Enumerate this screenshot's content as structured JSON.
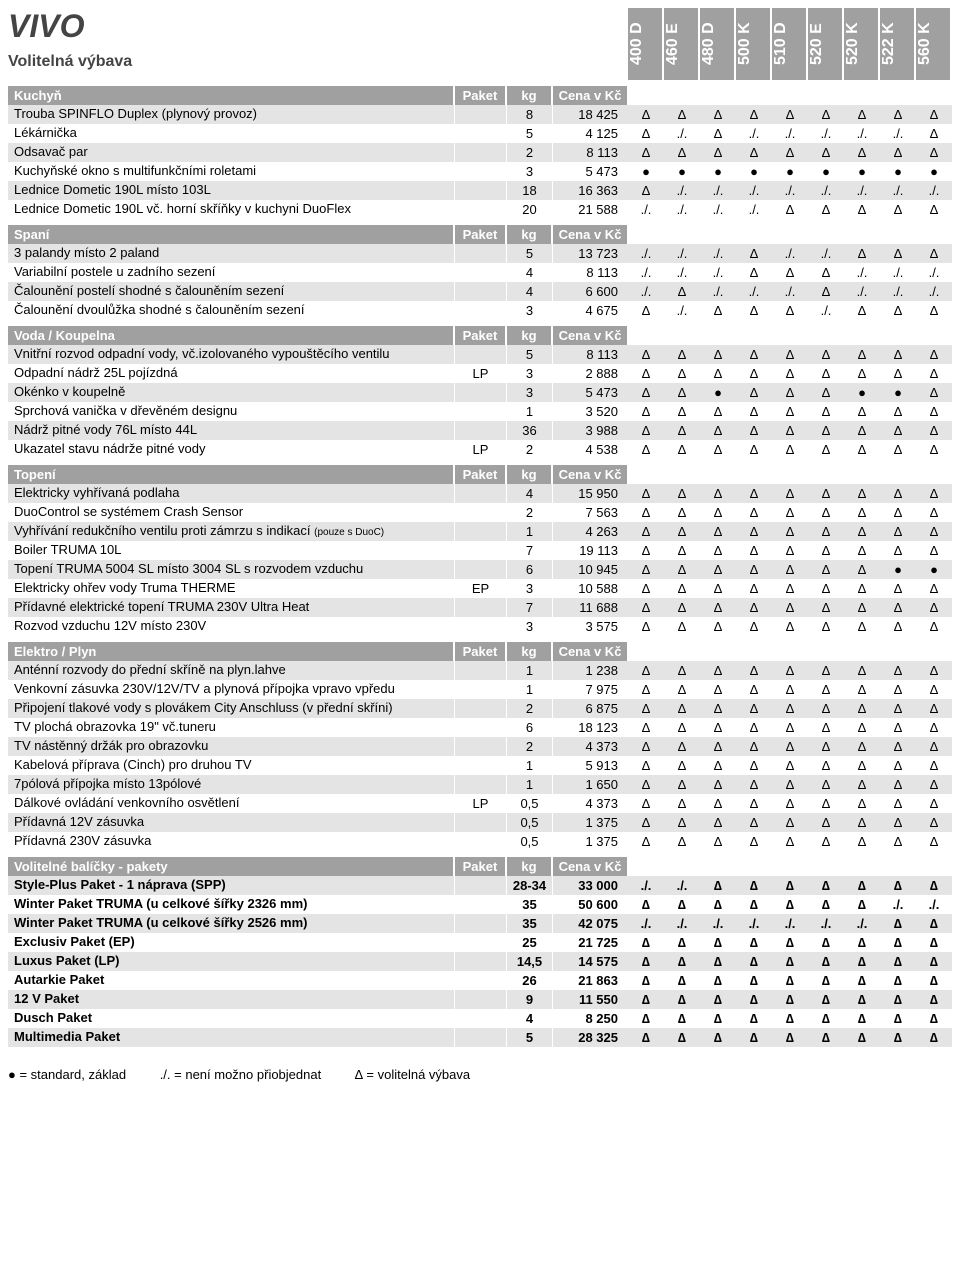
{
  "title": "VIVO",
  "subtitle": "Volitelná výbava",
  "models": [
    "400 D",
    "460 E",
    "480 D",
    "500 K",
    "510 D",
    "520 E",
    "520 K",
    "522 K",
    "560 K"
  ],
  "headLabels": {
    "paket": "Paket",
    "kg": "kg",
    "price": "Cena v Kč"
  },
  "legend": {
    "std": "● = standard, základ",
    "na": "./. = není možno přiobjednat",
    "opt": "∆ =  volitelná výbava"
  },
  "sections": [
    {
      "name": "Kuchyň",
      "rows": [
        {
          "name": "Trouba SPINFLO Duplex (plynový provoz)",
          "paket": "",
          "kg": "8",
          "price": "18 425",
          "m": [
            "∆",
            "∆",
            "∆",
            "∆",
            "∆",
            "∆",
            "∆",
            "∆",
            "∆"
          ]
        },
        {
          "name": "Lékárnička",
          "paket": "",
          "kg": "5",
          "price": "4 125",
          "m": [
            "∆",
            "./.",
            "∆",
            "./.",
            "./.",
            "./.",
            "./.",
            "./.",
            "∆"
          ]
        },
        {
          "name": "Odsavač par",
          "paket": "",
          "kg": "2",
          "price": "8 113",
          "m": [
            "∆",
            "∆",
            "∆",
            "∆",
            "∆",
            "∆",
            "∆",
            "∆",
            "∆"
          ]
        },
        {
          "name": "Kuchyňské okno s multifunkčními roletami",
          "paket": "",
          "kg": "3",
          "price": "5 473",
          "m": [
            "●",
            "●",
            "●",
            "●",
            "●",
            "●",
            "●",
            "●",
            "●"
          ]
        },
        {
          "name": "Lednice Dometic 190L místo 103L",
          "paket": "",
          "kg": "18",
          "price": "16 363",
          "m": [
            "∆",
            "./.",
            "./.",
            "./.",
            "./.",
            "./.",
            "./.",
            "./.",
            "./."
          ]
        },
        {
          "name": "Lednice Dometic 190L vč. horní skříňky v kuchyni DuoFlex",
          "paket": "",
          "kg": "20",
          "price": "21 588",
          "m": [
            "./.",
            "./.",
            "./.",
            "./.",
            "∆",
            "∆",
            "∆",
            "∆",
            "∆"
          ]
        }
      ]
    },
    {
      "name": "Spaní",
      "rows": [
        {
          "name": "3 palandy místo 2 paland",
          "paket": "",
          "kg": "5",
          "price": "13 723",
          "m": [
            "./.",
            "./.",
            "./.",
            "∆",
            "./.",
            "./.",
            "∆",
            "∆",
            "∆"
          ]
        },
        {
          "name": "Variabilní postele u zadního sezení",
          "paket": "",
          "kg": "4",
          "price": "8 113",
          "m": [
            "./.",
            "./.",
            "./.",
            "∆",
            "∆",
            "∆",
            "./.",
            "./.",
            "./."
          ]
        },
        {
          "name": "Čalounění postelí shodné s čalouněním sezení",
          "paket": "",
          "kg": "4",
          "price": "6 600",
          "m": [
            "./.",
            "∆",
            "./.",
            "./.",
            "./.",
            "∆",
            "./.",
            "./.",
            "./."
          ]
        },
        {
          "name": "Čalounění dvoulůžka shodné s čalouněním sezení",
          "paket": "",
          "kg": "3",
          "price": "4 675",
          "m": [
            "∆",
            "./.",
            "∆",
            "∆",
            "∆",
            "./.",
            "∆",
            "∆",
            "∆"
          ]
        }
      ]
    },
    {
      "name": "Voda / Koupelna",
      "rows": [
        {
          "name": "Vnitřní rozvod odpadní vody, vč.izolovaného vypouštěcího ventilu",
          "paket": "",
          "kg": "5",
          "price": "8 113",
          "m": [
            "∆",
            "∆",
            "∆",
            "∆",
            "∆",
            "∆",
            "∆",
            "∆",
            "∆"
          ]
        },
        {
          "name": "Odpadní nádrž 25L pojízdná",
          "paket": "LP",
          "kg": "3",
          "price": "2 888",
          "m": [
            "∆",
            "∆",
            "∆",
            "∆",
            "∆",
            "∆",
            "∆",
            "∆",
            "∆"
          ]
        },
        {
          "name": "Okénko v koupelně",
          "paket": "",
          "kg": "3",
          "price": "5 473",
          "m": [
            "∆",
            "∆",
            "●",
            "∆",
            "∆",
            "∆",
            "●",
            "●",
            "∆"
          ]
        },
        {
          "name": "Sprchová vanička v dřevěném designu",
          "paket": "",
          "kg": "1",
          "price": "3 520",
          "m": [
            "∆",
            "∆",
            "∆",
            "∆",
            "∆",
            "∆",
            "∆",
            "∆",
            "∆"
          ]
        },
        {
          "name": "Nádrž pitné vody 76L místo 44L",
          "paket": "",
          "kg": "36",
          "price": "3 988",
          "m": [
            "∆",
            "∆",
            "∆",
            "∆",
            "∆",
            "∆",
            "∆",
            "∆",
            "∆"
          ]
        },
        {
          "name": "Ukazatel stavu nádrže pitné vody",
          "paket": "LP",
          "kg": "2",
          "price": "4 538",
          "m": [
            "∆",
            "∆",
            "∆",
            "∆",
            "∆",
            "∆",
            "∆",
            "∆",
            "∆"
          ]
        }
      ]
    },
    {
      "name": "Topení",
      "rows": [
        {
          "name": "Elektricky vyhřívaná podlaha",
          "paket": "",
          "kg": "4",
          "price": "15 950",
          "m": [
            "∆",
            "∆",
            "∆",
            "∆",
            "∆",
            "∆",
            "∆",
            "∆",
            "∆"
          ]
        },
        {
          "name": "DuoControl se systémem Crash Sensor",
          "paket": "",
          "kg": "2",
          "price": "7 563",
          "m": [
            "∆",
            "∆",
            "∆",
            "∆",
            "∆",
            "∆",
            "∆",
            "∆",
            "∆"
          ]
        },
        {
          "name": "Vyhřívání redukčního ventilu proti zámrzu s indikací ",
          "note": "(pouze s DuoC)",
          "paket": "",
          "kg": "1",
          "price": "4 263",
          "m": [
            "∆",
            "∆",
            "∆",
            "∆",
            "∆",
            "∆",
            "∆",
            "∆",
            "∆"
          ]
        },
        {
          "name": "Boiler TRUMA 10L",
          "paket": "",
          "kg": "7",
          "price": "19 113",
          "m": [
            "∆",
            "∆",
            "∆",
            "∆",
            "∆",
            "∆",
            "∆",
            "∆",
            "∆"
          ]
        },
        {
          "name": "Topení TRUMA 5004 SL místo 3004 SL s rozvodem vzduchu",
          "paket": "",
          "kg": "6",
          "price": "10 945",
          "m": [
            "∆",
            "∆",
            "∆",
            "∆",
            "∆",
            "∆",
            "∆",
            "●",
            "●"
          ]
        },
        {
          "name": "Elektricky ohřev vody Truma THERME",
          "paket": "EP",
          "kg": "3",
          "price": "10 588",
          "m": [
            "∆",
            "∆",
            "∆",
            "∆",
            "∆",
            "∆",
            "∆",
            "∆",
            "∆"
          ]
        },
        {
          "name": "Přídavné elektrické topení TRUMA 230V Ultra Heat",
          "paket": "",
          "kg": "7",
          "price": "11 688",
          "m": [
            "∆",
            "∆",
            "∆",
            "∆",
            "∆",
            "∆",
            "∆",
            "∆",
            "∆"
          ]
        },
        {
          "name": "Rozvod vzduchu 12V místo 230V",
          "paket": "",
          "kg": "3",
          "price": "3 575",
          "m": [
            "∆",
            "∆",
            "∆",
            "∆",
            "∆",
            "∆",
            "∆",
            "∆",
            "∆"
          ]
        }
      ]
    },
    {
      "name": "Elektro / Plyn",
      "rows": [
        {
          "name": "Anténní rozvody do přední skříně na plyn.lahve",
          "paket": "",
          "kg": "1",
          "price": "1 238",
          "m": [
            "∆",
            "∆",
            "∆",
            "∆",
            "∆",
            "∆",
            "∆",
            "∆",
            "∆"
          ]
        },
        {
          "name": "Venkovní zásuvka 230V/12V/TV a plynová přípojka vpravo vpředu",
          "paket": "",
          "kg": "1",
          "price": "7 975",
          "m": [
            "∆",
            "∆",
            "∆",
            "∆",
            "∆",
            "∆",
            "∆",
            "∆",
            "∆"
          ]
        },
        {
          "name": "Připojení tlakové vody s plovákem City Anschluss (v přední skříni)",
          "paket": "",
          "kg": "2",
          "price": "6 875",
          "m": [
            "∆",
            "∆",
            "∆",
            "∆",
            "∆",
            "∆",
            "∆",
            "∆",
            "∆"
          ]
        },
        {
          "name": "TV plochá obrazovka 19\" vč.tuneru",
          "paket": "",
          "kg": "6",
          "price": "18 123",
          "m": [
            "∆",
            "∆",
            "∆",
            "∆",
            "∆",
            "∆",
            "∆",
            "∆",
            "∆"
          ]
        },
        {
          "name": "TV nástěnný držák pro obrazovku",
          "paket": "",
          "kg": "2",
          "price": "4 373",
          "m": [
            "∆",
            "∆",
            "∆",
            "∆",
            "∆",
            "∆",
            "∆",
            "∆",
            "∆"
          ]
        },
        {
          "name": "Kabelová příprava (Cinch) pro druhou TV",
          "paket": "",
          "kg": "1",
          "price": "5 913",
          "m": [
            "∆",
            "∆",
            "∆",
            "∆",
            "∆",
            "∆",
            "∆",
            "∆",
            "∆"
          ]
        },
        {
          "name": "7pólová přípojka místo 13pólové",
          "paket": "",
          "kg": "1",
          "price": "1 650",
          "m": [
            "∆",
            "∆",
            "∆",
            "∆",
            "∆",
            "∆",
            "∆",
            "∆",
            "∆"
          ]
        },
        {
          "name": "Dálkové ovládání venkovního osvětlení",
          "paket": "LP",
          "kg": "0,5",
          "price": "4 373",
          "m": [
            "∆",
            "∆",
            "∆",
            "∆",
            "∆",
            "∆",
            "∆",
            "∆",
            "∆"
          ]
        },
        {
          "name": "Přídavná 12V zásuvka",
          "paket": "",
          "kg": "0,5",
          "price": "1 375",
          "m": [
            "∆",
            "∆",
            "∆",
            "∆",
            "∆",
            "∆",
            "∆",
            "∆",
            "∆"
          ]
        },
        {
          "name": "Přídavná 230V zásuvka",
          "paket": "",
          "kg": "0,5",
          "price": "1 375",
          "m": [
            "∆",
            "∆",
            "∆",
            "∆",
            "∆",
            "∆",
            "∆",
            "∆",
            "∆"
          ]
        }
      ]
    },
    {
      "name": "Volitelné balíčky - pakety",
      "bold": true,
      "rows": [
        {
          "name": "Style-Plus Paket - 1 náprava (SPP)",
          "paket": "",
          "kg": "28-34",
          "price": "33 000",
          "m": [
            "./.",
            "./.",
            "∆",
            "∆",
            "∆",
            "∆",
            "∆",
            "∆",
            "∆"
          ]
        },
        {
          "name": "Winter Paket TRUMA (u celkové šířky 2326 mm)",
          "paket": "",
          "kg": "35",
          "price": "50 600",
          "m": [
            "∆",
            "∆",
            "∆",
            "∆",
            "∆",
            "∆",
            "∆",
            "./.",
            "./."
          ]
        },
        {
          "name": "Winter Paket TRUMA (u celkové šířky 2526 mm)",
          "paket": "",
          "kg": "35",
          "price": "42 075",
          "m": [
            "./.",
            "./.",
            "./.",
            "./.",
            "./.",
            "./.",
            "./.",
            "∆",
            "∆"
          ]
        },
        {
          "name": "Exclusiv Paket (EP)",
          "paket": "",
          "kg": "25",
          "price": "21 725",
          "m": [
            "∆",
            "∆",
            "∆",
            "∆",
            "∆",
            "∆",
            "∆",
            "∆",
            "∆"
          ]
        },
        {
          "name": "Luxus Paket (LP)",
          "paket": "",
          "kg": "14,5",
          "price": "14 575",
          "m": [
            "∆",
            "∆",
            "∆",
            "∆",
            "∆",
            "∆",
            "∆",
            "∆",
            "∆"
          ]
        },
        {
          "name": "Autarkie Paket",
          "paket": "",
          "kg": "26",
          "price": "21 863",
          "m": [
            "∆",
            "∆",
            "∆",
            "∆",
            "∆",
            "∆",
            "∆",
            "∆",
            "∆"
          ]
        },
        {
          "name": "12 V  Paket",
          "paket": "",
          "kg": "9",
          "price": "11 550",
          "m": [
            "∆",
            "∆",
            "∆",
            "∆",
            "∆",
            "∆",
            "∆",
            "∆",
            "∆"
          ]
        },
        {
          "name": "Dusch Paket",
          "paket": "",
          "kg": "4",
          "price": "8 250",
          "m": [
            "∆",
            "∆",
            "∆",
            "∆",
            "∆",
            "∆",
            "∆",
            "∆",
            "∆"
          ]
        },
        {
          "name": "Multimedia Paket",
          "paket": "",
          "kg": "5",
          "price": "28 325",
          "m": [
            "∆",
            "∆",
            "∆",
            "∆",
            "∆",
            "∆",
            "∆",
            "∆",
            "∆"
          ]
        }
      ]
    }
  ]
}
